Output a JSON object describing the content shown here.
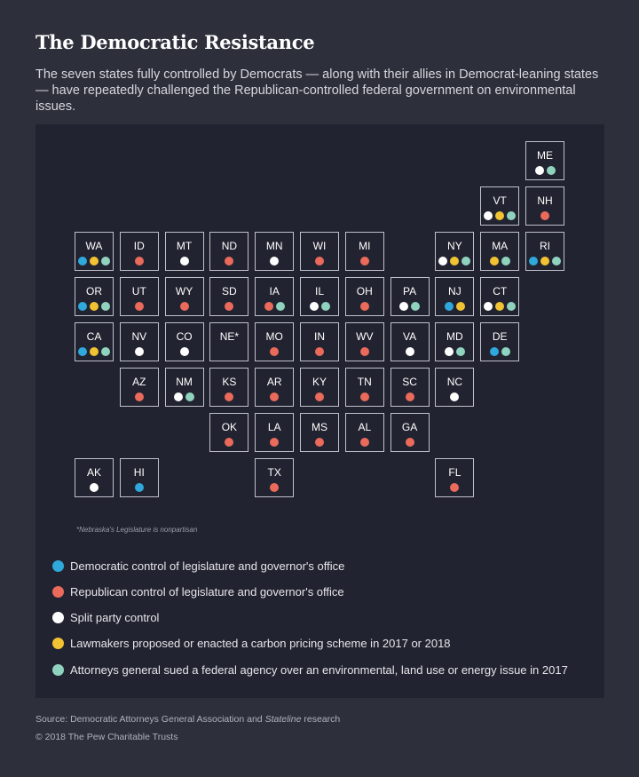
{
  "title": "The Democratic Resistance",
  "subtitle": "The seven states fully controlled by Democrats — along with their allies in Democrat-leaning states — have repeatedly challenged the Republican-controlled federal government on environmental issues.",
  "colors": {
    "dem": "#2fa8dc",
    "rep": "#ea6a5b",
    "split": "#ffffff",
    "carbon": "#f1c232",
    "ag": "#8fd3bf",
    "panel": "#222330",
    "background": "#2d2f3b"
  },
  "states": [
    {
      "abbr": "ME",
      "col": 10,
      "row": 0,
      "dots": [
        "split",
        "ag"
      ]
    },
    {
      "abbr": "VT",
      "col": 9,
      "row": 1,
      "dots": [
        "split",
        "carbon",
        "ag"
      ]
    },
    {
      "abbr": "NH",
      "col": 10,
      "row": 1,
      "dots": [
        "rep"
      ]
    },
    {
      "abbr": "WA",
      "col": 0,
      "row": 2,
      "dots": [
        "dem",
        "carbon",
        "ag"
      ]
    },
    {
      "abbr": "ID",
      "col": 1,
      "row": 2,
      "dots": [
        "rep"
      ]
    },
    {
      "abbr": "MT",
      "col": 2,
      "row": 2,
      "dots": [
        "split"
      ]
    },
    {
      "abbr": "ND",
      "col": 3,
      "row": 2,
      "dots": [
        "rep"
      ]
    },
    {
      "abbr": "MN",
      "col": 4,
      "row": 2,
      "dots": [
        "split"
      ]
    },
    {
      "abbr": "WI",
      "col": 5,
      "row": 2,
      "dots": [
        "rep"
      ]
    },
    {
      "abbr": "MI",
      "col": 6,
      "row": 2,
      "dots": [
        "rep"
      ]
    },
    {
      "abbr": "NY",
      "col": 8,
      "row": 2,
      "dots": [
        "split",
        "carbon",
        "ag"
      ]
    },
    {
      "abbr": "MA",
      "col": 9,
      "row": 2,
      "dots": [
        "carbon",
        "ag"
      ]
    },
    {
      "abbr": "RI",
      "col": 10,
      "row": 2,
      "dots": [
        "dem",
        "carbon",
        "ag"
      ]
    },
    {
      "abbr": "OR",
      "col": 0,
      "row": 3,
      "dots": [
        "dem",
        "carbon",
        "ag"
      ]
    },
    {
      "abbr": "UT",
      "col": 1,
      "row": 3,
      "dots": [
        "rep"
      ]
    },
    {
      "abbr": "WY",
      "col": 2,
      "row": 3,
      "dots": [
        "rep"
      ]
    },
    {
      "abbr": "SD",
      "col": 3,
      "row": 3,
      "dots": [
        "rep"
      ]
    },
    {
      "abbr": "IA",
      "col": 4,
      "row": 3,
      "dots": [
        "rep",
        "ag"
      ]
    },
    {
      "abbr": "IL",
      "col": 5,
      "row": 3,
      "dots": [
        "split",
        "ag"
      ]
    },
    {
      "abbr": "OH",
      "col": 6,
      "row": 3,
      "dots": [
        "rep"
      ]
    },
    {
      "abbr": "PA",
      "col": 7,
      "row": 3,
      "dots": [
        "split",
        "ag"
      ]
    },
    {
      "abbr": "NJ",
      "col": 8,
      "row": 3,
      "dots": [
        "dem",
        "carbon"
      ]
    },
    {
      "abbr": "CT",
      "col": 9,
      "row": 3,
      "dots": [
        "split",
        "carbon",
        "ag"
      ]
    },
    {
      "abbr": "CA",
      "col": 0,
      "row": 4,
      "dots": [
        "dem",
        "carbon",
        "ag"
      ]
    },
    {
      "abbr": "NV",
      "col": 1,
      "row": 4,
      "dots": [
        "split"
      ]
    },
    {
      "abbr": "CO",
      "col": 2,
      "row": 4,
      "dots": [
        "split"
      ]
    },
    {
      "abbr": "NE*",
      "col": 3,
      "row": 4,
      "dots": []
    },
    {
      "abbr": "MO",
      "col": 4,
      "row": 4,
      "dots": [
        "rep"
      ]
    },
    {
      "abbr": "IN",
      "col": 5,
      "row": 4,
      "dots": [
        "rep"
      ]
    },
    {
      "abbr": "WV",
      "col": 6,
      "row": 4,
      "dots": [
        "rep"
      ]
    },
    {
      "abbr": "VA",
      "col": 7,
      "row": 4,
      "dots": [
        "split"
      ]
    },
    {
      "abbr": "MD",
      "col": 8,
      "row": 4,
      "dots": [
        "split",
        "ag"
      ]
    },
    {
      "abbr": "DE",
      "col": 9,
      "row": 4,
      "dots": [
        "dem",
        "ag"
      ]
    },
    {
      "abbr": "AZ",
      "col": 1,
      "row": 5,
      "dots": [
        "rep"
      ]
    },
    {
      "abbr": "NM",
      "col": 2,
      "row": 5,
      "dots": [
        "split",
        "ag"
      ]
    },
    {
      "abbr": "KS",
      "col": 3,
      "row": 5,
      "dots": [
        "rep"
      ]
    },
    {
      "abbr": "AR",
      "col": 4,
      "row": 5,
      "dots": [
        "rep"
      ]
    },
    {
      "abbr": "KY",
      "col": 5,
      "row": 5,
      "dots": [
        "rep"
      ]
    },
    {
      "abbr": "TN",
      "col": 6,
      "row": 5,
      "dots": [
        "rep"
      ]
    },
    {
      "abbr": "SC",
      "col": 7,
      "row": 5,
      "dots": [
        "rep"
      ]
    },
    {
      "abbr": "NC",
      "col": 8,
      "row": 5,
      "dots": [
        "split"
      ]
    },
    {
      "abbr": "OK",
      "col": 3,
      "row": 6,
      "dots": [
        "rep"
      ]
    },
    {
      "abbr": "LA",
      "col": 4,
      "row": 6,
      "dots": [
        "rep"
      ]
    },
    {
      "abbr": "MS",
      "col": 5,
      "row": 6,
      "dots": [
        "rep"
      ]
    },
    {
      "abbr": "AL",
      "col": 6,
      "row": 6,
      "dots": [
        "rep"
      ]
    },
    {
      "abbr": "GA",
      "col": 7,
      "row": 6,
      "dots": [
        "rep"
      ]
    },
    {
      "abbr": "AK",
      "col": 0,
      "row": 7,
      "dots": [
        "split"
      ]
    },
    {
      "abbr": "HI",
      "col": 1,
      "row": 7,
      "dots": [
        "dem"
      ]
    },
    {
      "abbr": "TX",
      "col": 4,
      "row": 7,
      "dots": [
        "rep"
      ]
    },
    {
      "abbr": "FL",
      "col": 8,
      "row": 7,
      "dots": [
        "rep"
      ]
    }
  ],
  "note": "*Nebraska's Legislature is nonpartisan",
  "legend": [
    {
      "key": "dem",
      "label": "Democratic control of legislature and governor's office"
    },
    {
      "key": "rep",
      "label": "Republican control of legislature and governor's office"
    },
    {
      "key": "split",
      "label": "Split party control"
    },
    {
      "key": "carbon",
      "label": "Lawmakers proposed or enacted a carbon pricing scheme in 2017 or 2018"
    },
    {
      "key": "ag",
      "label": "Attorneys general sued a federal agency over an environmental, land use or energy issue in 2017"
    }
  ],
  "source_prefix": "Source: Democratic Attorneys General Association and ",
  "source_italic": "Stateline",
  "source_suffix": " research",
  "copyright": "© 2018 The Pew Charitable Trusts"
}
